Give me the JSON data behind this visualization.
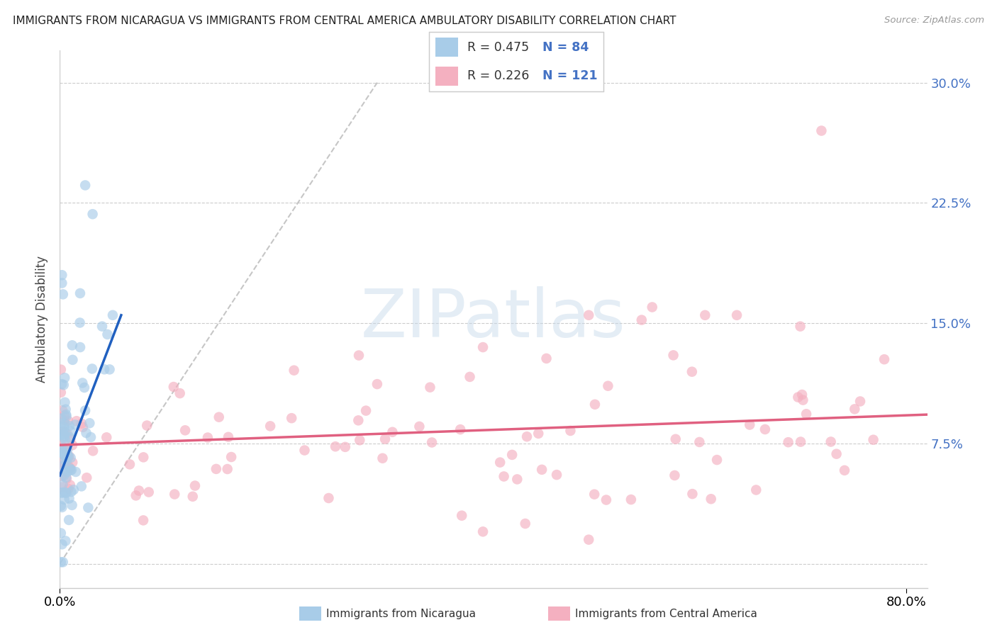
{
  "title": "IMMIGRANTS FROM NICARAGUA VS IMMIGRANTS FROM CENTRAL AMERICA AMBULATORY DISABILITY CORRELATION CHART",
  "source": "Source: ZipAtlas.com",
  "ylabel": "Ambulatory Disability",
  "ytick_labels": [
    "",
    "7.5%",
    "15.0%",
    "22.5%",
    "30.0%"
  ],
  "ytick_vals": [
    0.0,
    0.075,
    0.15,
    0.225,
    0.3
  ],
  "legend_r1": "R = 0.475",
  "legend_n1": "N = 84",
  "legend_r2": "R = 0.226",
  "legend_n2": "N = 121",
  "color_nicaragua": "#a8cce8",
  "color_central": "#f4b0c0",
  "color_nicaragua_line": "#2060c0",
  "color_central_line": "#e06080",
  "color_diagonal": "#b8b8b8",
  "background_color": "#ffffff",
  "watermark": "ZIPatlas",
  "xmin": 0.0,
  "xmax": 0.82,
  "ymin": -0.015,
  "ymax": 0.32,
  "xtick_left": "0.0%",
  "xtick_right": "80.0%",
  "label_nicaragua": "Immigrants from Nicaragua",
  "label_central": "Immigrants from Central America"
}
